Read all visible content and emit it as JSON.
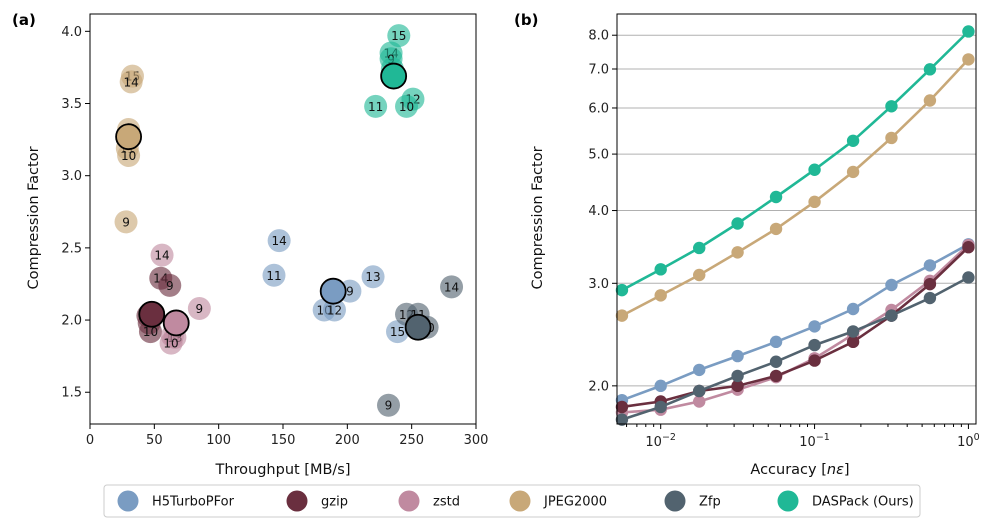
{
  "colors": {
    "H5TurboPFor": "#7a9cc2",
    "gzip": "#6a2f3f",
    "zstd": "#c08aa0",
    "JPEG2000": "#c8a878",
    "Zfp": "#52636f",
    "DASPack (Ours)": "#20b896"
  },
  "legend": {
    "entries": [
      "H5TurboPFor",
      "gzip",
      "zstd",
      "JPEG2000",
      "Zfp",
      "DASPack (Ours)"
    ]
  },
  "chart_data": [
    {
      "type": "scatter",
      "panel_tag": "(a)",
      "xlabel": "Throughput [MB/s]",
      "ylabel": "Compression Factor",
      "xlim": [
        0,
        300
      ],
      "ylim": [
        1.28,
        4.12
      ],
      "xticks": [
        0,
        50,
        100,
        150,
        200,
        250,
        300
      ],
      "yticks": [
        1.5,
        2.0,
        2.5,
        3.0,
        3.5,
        4.0
      ],
      "xtick_labels": [
        "0",
        "50",
        "100",
        "150",
        "200",
        "250",
        "300"
      ],
      "ytick_labels": [
        "1.5",
        "2.0",
        "2.5",
        "3.0",
        "3.5",
        "4.0"
      ],
      "series": [
        {
          "name": "H5TurboPFor",
          "points": [
            {
              "x": 147,
              "y": 2.55,
              "label": "14"
            },
            {
              "x": 143,
              "y": 2.31,
              "label": "11"
            },
            {
              "x": 220,
              "y": 2.3,
              "label": "13"
            },
            {
              "x": 202,
              "y": 2.2,
              "label": "9"
            },
            {
              "x": 182,
              "y": 2.07,
              "label": "10"
            },
            {
              "x": 190,
              "y": 2.07,
              "label": "12"
            },
            {
              "x": 239,
              "y": 1.92,
              "label": "15"
            }
          ],
          "highlight": {
            "x": 189,
            "y": 2.2
          }
        },
        {
          "name": "gzip",
          "points": [
            {
              "x": 55,
              "y": 2.29,
              "label": "14"
            },
            {
              "x": 62,
              "y": 2.24,
              "label": "9"
            },
            {
              "x": 45,
              "y": 2.03,
              "label": ""
            },
            {
              "x": 46,
              "y": 1.98,
              "label": ""
            },
            {
              "x": 47,
              "y": 1.92,
              "label": "10"
            }
          ],
          "highlight": {
            "x": 48,
            "y": 2.04
          }
        },
        {
          "name": "zstd",
          "points": [
            {
              "x": 56,
              "y": 2.45,
              "label": "14"
            },
            {
              "x": 85,
              "y": 2.08,
              "label": "9"
            },
            {
              "x": 64,
              "y": 1.89,
              "label": "10"
            },
            {
              "x": 66,
              "y": 1.88,
              "label": "13"
            },
            {
              "x": 63,
              "y": 1.84,
              "label": "10"
            }
          ],
          "highlight": {
            "x": 67,
            "y": 1.98
          }
        },
        {
          "name": "JPEG2000",
          "points": [
            {
              "x": 33,
              "y": 3.69,
              "label": "15"
            },
            {
              "x": 32,
              "y": 3.65,
              "label": "14"
            },
            {
              "x": 30,
              "y": 3.32,
              "label": "13"
            },
            {
              "x": 29,
              "y": 3.19,
              "label": "11"
            },
            {
              "x": 30,
              "y": 3.14,
              "label": "10"
            },
            {
              "x": 28,
              "y": 2.68,
              "label": "9"
            }
          ],
          "highlight": {
            "x": 30,
            "y": 3.27
          }
        },
        {
          "name": "Zfp",
          "points": [
            {
              "x": 281,
              "y": 2.23,
              "label": "14"
            },
            {
              "x": 246,
              "y": 2.04,
              "label": "12"
            },
            {
              "x": 255,
              "y": 2.04,
              "label": "11"
            },
            {
              "x": 262,
              "y": 1.95,
              "label": "10"
            },
            {
              "x": 232,
              "y": 1.41,
              "label": "9"
            }
          ],
          "highlight": {
            "x": 255,
            "y": 1.95
          }
        },
        {
          "name": "DASPack (Ours)",
          "points": [
            {
              "x": 240,
              "y": 3.97,
              "label": "15"
            },
            {
              "x": 234,
              "y": 3.85,
              "label": "14"
            },
            {
              "x": 234,
              "y": 3.81,
              "label": "9"
            },
            {
              "x": 235,
              "y": 3.74,
              "label": "13"
            },
            {
              "x": 251,
              "y": 3.53,
              "label": "12"
            },
            {
              "x": 222,
              "y": 3.48,
              "label": "11"
            },
            {
              "x": 246,
              "y": 3.48,
              "label": "10"
            }
          ],
          "highlight": {
            "x": 236,
            "y": 3.69
          }
        }
      ]
    },
    {
      "type": "line",
      "panel_tag": "(b)",
      "xlabel": "Accuracy [nε]",
      "xlabel_parts": [
        "Accuracy [",
        "nε",
        "]"
      ],
      "ylabel": "Compression Factor",
      "xscale": "log",
      "yscale": "log",
      "xlim": [
        0.0052,
        1.12
      ],
      "ylim": [
        1.72,
        8.7
      ],
      "x": [
        0.0056,
        0.01,
        0.0178,
        0.0316,
        0.0562,
        0.1,
        0.178,
        0.316,
        0.562,
        1.0
      ],
      "xticks": [
        0.01,
        0.1,
        1
      ],
      "xtick_labels": [
        {
          "base": "10",
          "exp": "−2"
        },
        {
          "base": "10",
          "exp": "−1"
        },
        {
          "base": "10",
          "exp": "0"
        }
      ],
      "yticks": [
        2.0,
        3.0,
        4.0,
        5.0,
        6.0,
        7.0,
        8.0
      ],
      "ytick_labels": [
        "2.0",
        "3.0",
        "4.0",
        "5.0",
        "6.0",
        "7.0",
        "8.0"
      ],
      "grid": "horizontal",
      "series": [
        {
          "name": "DASPack (Ours)",
          "values": [
            2.92,
            3.17,
            3.45,
            3.8,
            4.22,
            4.7,
            5.27,
            6.04,
            6.99,
            8.12
          ]
        },
        {
          "name": "JPEG2000",
          "values": [
            2.64,
            2.86,
            3.1,
            3.39,
            3.72,
            4.14,
            4.66,
            5.33,
            6.18,
            7.27
          ]
        },
        {
          "name": "H5TurboPFor",
          "values": [
            1.89,
            2.0,
            2.13,
            2.25,
            2.38,
            2.53,
            2.71,
            2.98,
            3.22,
            3.5
          ]
        },
        {
          "name": "zstd",
          "values": [
            1.8,
            1.82,
            1.88,
            1.97,
            2.07,
            2.23,
            2.45,
            2.7,
            3.03,
            3.49
          ]
        },
        {
          "name": "gzip",
          "values": [
            1.84,
            1.88,
            1.96,
            2.0,
            2.08,
            2.21,
            2.38,
            2.64,
            2.99,
            3.46
          ]
        },
        {
          "name": "Zfp",
          "values": [
            1.75,
            1.84,
            1.96,
            2.08,
            2.2,
            2.35,
            2.48,
            2.64,
            2.83,
            3.07
          ]
        }
      ]
    }
  ]
}
